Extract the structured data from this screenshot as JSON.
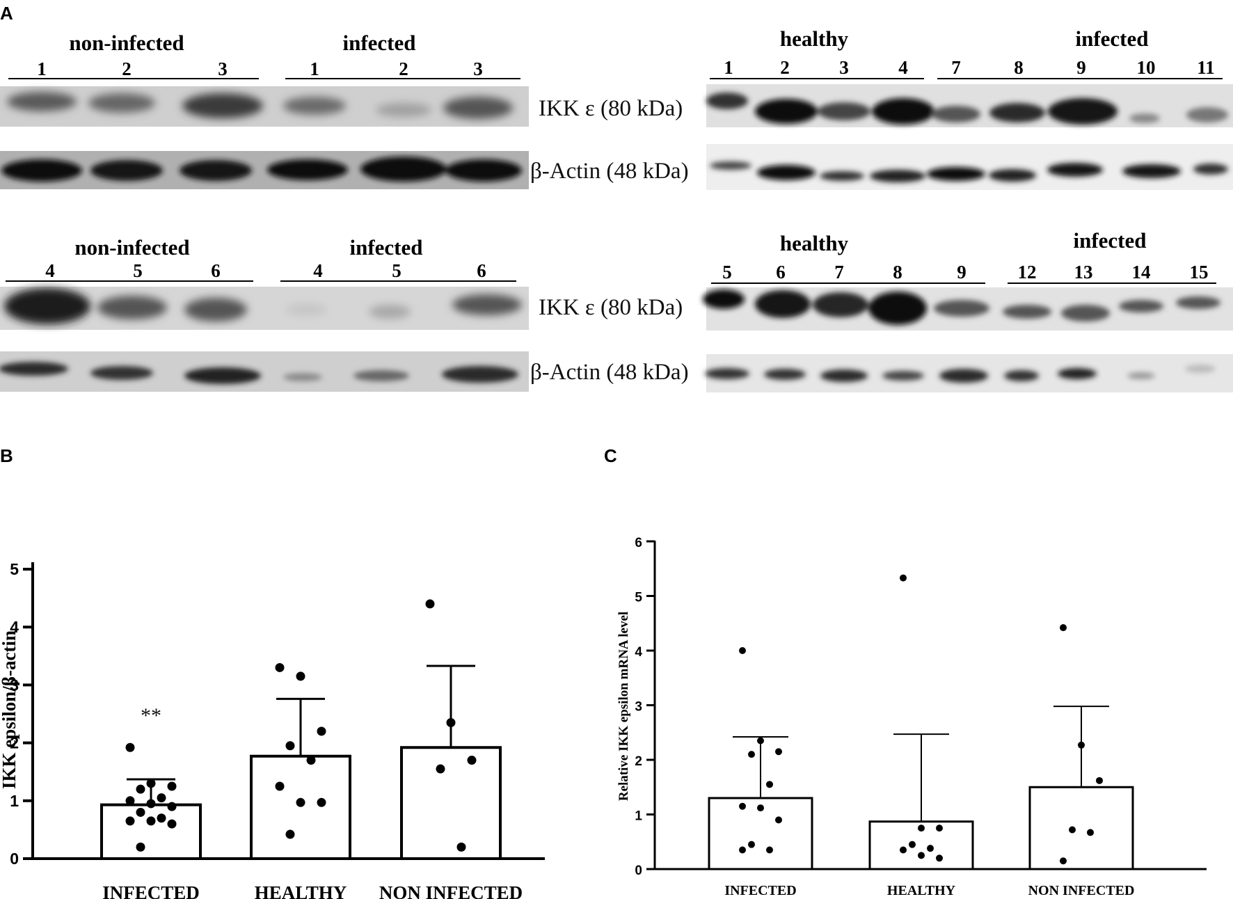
{
  "panels": {
    "a": "A",
    "b": "B",
    "c": "C"
  },
  "blots": {
    "top_left": {
      "group1": "non-infected",
      "group2": "infected",
      "lanes1": [
        "1",
        "2",
        "3"
      ],
      "lanes2": [
        "1",
        "2",
        "3"
      ]
    },
    "top_right": {
      "group1": "healthy",
      "group2": "infected",
      "lanes1": [
        "1",
        "2",
        "3",
        "4"
      ],
      "lanes2": [
        "7",
        "8",
        "9",
        "10",
        "11"
      ]
    },
    "bottom_left": {
      "group1": "non-infected",
      "group2": "infected",
      "lanes1": [
        "4",
        "5",
        "6"
      ],
      "lanes2": [
        "4",
        "5",
        "6"
      ]
    },
    "bottom_right": {
      "group1": "healthy",
      "group2": "infected",
      "lanes1": [
        "5",
        "6",
        "7",
        "8",
        "9"
      ],
      "lanes2": [
        "12",
        "13",
        "14",
        "15"
      ]
    },
    "label_ikk": "IKK ε (80 kDa)",
    "label_actin": "β-Actin (48 kDa)"
  },
  "chart_data": [
    {
      "type": "bar",
      "panel": "B",
      "categories": [
        "INFECTED",
        "HEALTHY",
        "NON INFECTED"
      ],
      "values": [
        0.93,
        1.77,
        1.92
      ],
      "error_upper": [
        1.37,
        2.76,
        3.33
      ],
      "points": [
        [
          1.92,
          1.3,
          1.25,
          1.2,
          1.05,
          1.0,
          0.95,
          0.9,
          0.8,
          0.7,
          0.65,
          0.65,
          0.6,
          0.2
        ],
        [
          3.3,
          3.15,
          2.2,
          1.95,
          1.7,
          1.25,
          0.97,
          0.97,
          0.42
        ],
        [
          4.4,
          2.35,
          1.7,
          1.55,
          0.2
        ]
      ],
      "annotation": "**",
      "ylabel": "IKK epsilon/β-actin",
      "ylim": [
        0,
        5
      ],
      "yticks": [
        "0",
        "1",
        "2",
        "3",
        "4",
        "5"
      ]
    },
    {
      "type": "bar",
      "panel": "C",
      "categories": [
        "INFECTED",
        "HEALTHY",
        "NON INFECTED"
      ],
      "values": [
        1.3,
        0.87,
        1.5
      ],
      "error_upper": [
        2.42,
        2.47,
        2.98
      ],
      "points": [
        [
          4.0,
          2.35,
          2.15,
          2.1,
          1.55,
          1.15,
          1.12,
          0.9,
          0.45,
          0.35,
          0.35
        ],
        [
          5.33,
          0.75,
          0.75,
          0.45,
          0.38,
          0.35,
          0.25,
          0.2
        ],
        [
          4.42,
          2.27,
          1.62,
          0.72,
          0.67,
          0.15
        ]
      ],
      "ylabel": "Relative IKK epsilon mRNA level",
      "ylim": [
        0,
        6
      ],
      "yticks": [
        "0",
        "1",
        "2",
        "3",
        "4",
        "5",
        "6"
      ]
    }
  ]
}
